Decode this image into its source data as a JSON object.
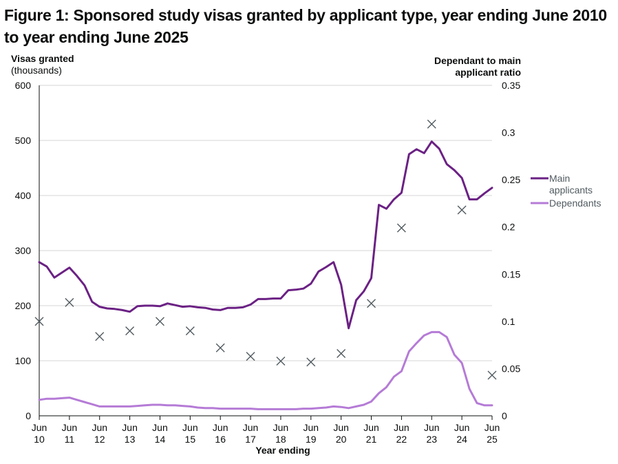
{
  "title": "Figure 1: Sponsored study visas granted by applicant type, year ending June 2010 to year ending June 2025",
  "colors": {
    "main": "#6b2184",
    "dependants": "#b57bd6",
    "ratio_marker": "#505a5f",
    "grid": "#d6d6d6",
    "axis": "#0b0c0c"
  },
  "chart_data": {
    "type": "line",
    "xlabel": "Year ending",
    "ylabel_left": "Visas granted",
    "ylabel_left_sub": "(thousands)",
    "ylabel_right_line1": "Dependant to main",
    "ylabel_right_line2": "applicant ratio",
    "ylim_left": [
      0,
      600
    ],
    "yticks_left": [
      "0",
      "100",
      "200",
      "300",
      "400",
      "500",
      "600"
    ],
    "ylim_right": [
      0,
      0.35
    ],
    "yticks_right": [
      "0",
      "0.05",
      "0.1",
      "0.15",
      "0.2",
      "0.25",
      "0.3",
      "0.35"
    ],
    "x_start": "Jun 2010",
    "x_end": "Jun 2025",
    "x_tick_labels": [
      [
        "Jun",
        "10"
      ],
      [
        "Jun",
        "11"
      ],
      [
        "Jun",
        "12"
      ],
      [
        "Jun",
        "13"
      ],
      [
        "Jun",
        "14"
      ],
      [
        "Jun",
        "15"
      ],
      [
        "Jun",
        "16"
      ],
      [
        "Jun",
        "17"
      ],
      [
        "Jun",
        "18"
      ],
      [
        "Jun",
        "19"
      ],
      [
        "Jun",
        "20"
      ],
      [
        "Jun",
        "21"
      ],
      [
        "Jun",
        "22"
      ],
      [
        "Jun",
        "23"
      ],
      [
        "Jun",
        "24"
      ],
      [
        "Jun",
        "25"
      ]
    ],
    "grid": true,
    "legend_position": "right",
    "series": [
      {
        "name": "Main applicants",
        "legend_lines": [
          "Main",
          "applicants"
        ],
        "axis": "left",
        "style": "line",
        "values": [
          279,
          271,
          251,
          260,
          269,
          254,
          237,
          207,
          198,
          195,
          194,
          192,
          189,
          199,
          200,
          200,
          199,
          204,
          201,
          198,
          199,
          197,
          196,
          193,
          192,
          196,
          196,
          197,
          202,
          212,
          212,
          213,
          213,
          228,
          229,
          231,
          240,
          262,
          270,
          279,
          238,
          159,
          210,
          226,
          250,
          383,
          376,
          393,
          405,
          475,
          484,
          477,
          498,
          485,
          457,
          446,
          432,
          393,
          393,
          404,
          414
        ]
      },
      {
        "name": "Dependants",
        "legend_lines": [
          "Dependants"
        ],
        "axis": "left",
        "style": "line",
        "values": [
          29,
          31,
          31,
          32,
          33,
          29,
          25,
          21,
          17,
          17,
          17,
          17,
          17,
          18,
          19,
          20,
          20,
          19,
          19,
          18,
          17,
          15,
          14,
          14,
          13,
          13,
          13,
          13,
          13,
          12,
          12,
          12,
          12,
          12,
          12,
          13,
          13,
          14,
          15,
          17,
          16,
          14,
          17,
          20,
          26,
          41,
          52,
          71,
          81,
          117,
          132,
          146,
          152,
          152,
          143,
          111,
          96,
          49,
          23,
          19,
          19
        ]
      },
      {
        "name": "Dependant to main applicant ratio",
        "axis": "right",
        "style": "marker",
        "points": [
          {
            "x": "Jun 10",
            "y": 0.1
          },
          {
            "x": "Jun 11",
            "y": 0.12
          },
          {
            "x": "Jun 12",
            "y": 0.084
          },
          {
            "x": "Jun 13",
            "y": 0.09
          },
          {
            "x": "Jun 14",
            "y": 0.1
          },
          {
            "x": "Jun 15",
            "y": 0.09
          },
          {
            "x": "Jun 16",
            "y": 0.072
          },
          {
            "x": "Jun 17",
            "y": 0.063
          },
          {
            "x": "Jun 18",
            "y": 0.058
          },
          {
            "x": "Jun 19",
            "y": 0.057
          },
          {
            "x": "Jun 20",
            "y": 0.066
          },
          {
            "x": "Jun 21",
            "y": 0.119
          },
          {
            "x": "Jun 22",
            "y": 0.199
          },
          {
            "x": "Jun 23",
            "y": 0.309
          },
          {
            "x": "Jun 24",
            "y": 0.218
          },
          {
            "x": "Jun 25",
            "y": 0.043
          }
        ]
      }
    ]
  }
}
